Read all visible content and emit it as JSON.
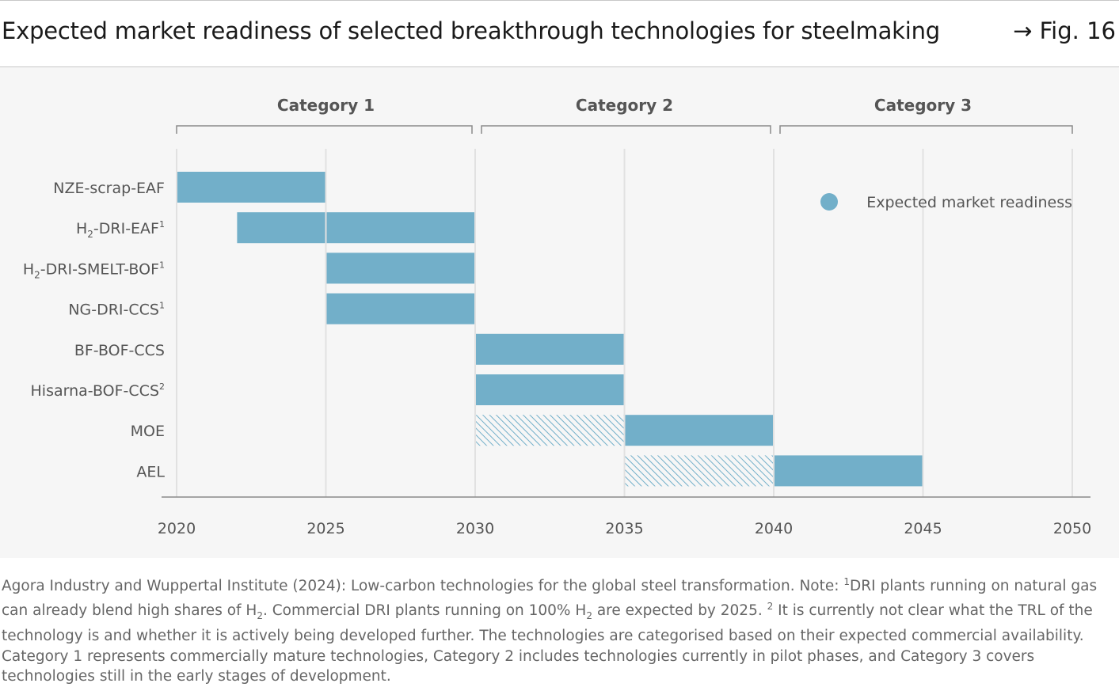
{
  "header": {
    "title": "Expected market readiness of selected breakthrough technologies for steelmaking",
    "fig_ref": "→ Fig. 16"
  },
  "colors": {
    "bar": "#72afc9",
    "hatch": "#72afc9",
    "grid": "#e1e1e1",
    "axis": "#8a8a8a",
    "text": "#555555",
    "heading": "#555555"
  },
  "chart_data": {
    "type": "gantt",
    "title": "Expected market readiness of selected breakthrough technologies for steelmaking",
    "xlim": [
      2020,
      2050
    ],
    "x_ticks": [
      "2020",
      "2025",
      "2030",
      "2035",
      "2040",
      "2045",
      "2050"
    ],
    "legend": {
      "label": "Expected market readiness",
      "position": "top-right"
    },
    "categories": [
      {
        "label": "Category 1",
        "start": 2020,
        "end": 2030
      },
      {
        "label": "Category 2",
        "start": 2030,
        "end": 2040
      },
      {
        "label": "Category 3",
        "start": 2040,
        "end": 2050
      }
    ],
    "rows": [
      {
        "base": "NZE-scrap-EAF",
        "sub": "",
        "rest": "",
        "sup": "",
        "segments": [
          {
            "start": 2020,
            "end": 2025,
            "style": "solid"
          }
        ]
      },
      {
        "base": "H",
        "sub": "2",
        "rest": "-DRI-EAF",
        "sup": "1",
        "segments": [
          {
            "start": 2022,
            "end": 2025,
            "style": "solid"
          },
          {
            "start": 2025,
            "end": 2030,
            "style": "solid"
          }
        ]
      },
      {
        "base": "H",
        "sub": "2",
        "rest": "-DRI-SMELT-BOF",
        "sup": "1",
        "segments": [
          {
            "start": 2025,
            "end": 2030,
            "style": "solid"
          }
        ]
      },
      {
        "base": "NG-DRI-CCS",
        "sub": "",
        "rest": "",
        "sup": "1",
        "segments": [
          {
            "start": 2025,
            "end": 2030,
            "style": "solid"
          }
        ]
      },
      {
        "base": "BF-BOF-CCS",
        "sub": "",
        "rest": "",
        "sup": "",
        "segments": [
          {
            "start": 2030,
            "end": 2035,
            "style": "solid"
          }
        ]
      },
      {
        "base": "Hisarna-BOF-CCS",
        "sub": "",
        "rest": "",
        "sup": "2",
        "segments": [
          {
            "start": 2030,
            "end": 2035,
            "style": "solid"
          }
        ]
      },
      {
        "base": "MOE",
        "sub": "",
        "rest": "",
        "sup": "",
        "segments": [
          {
            "start": 2030,
            "end": 2035,
            "style": "hatched"
          },
          {
            "start": 2035,
            "end": 2040,
            "style": "solid"
          }
        ]
      },
      {
        "base": "AEL",
        "sub": "",
        "rest": "",
        "sup": "",
        "segments": [
          {
            "start": 2035,
            "end": 2040,
            "style": "hatched"
          },
          {
            "start": 2040,
            "end": 2045,
            "style": "solid"
          }
        ]
      }
    ]
  },
  "footnote": {
    "text_a": "Agora Industry and Wuppertal Institute (2024): Low-carbon technologies for the global steel transformation. Note: ",
    "sup1": "1",
    "text_b": "DRI plants running on natural gas can already blend high shares of H",
    "sub1": "2",
    "text_c": ". Commercial DRI plants running on 100% H",
    "sub2": "2",
    "text_d": " are expected by 2025. ",
    "sup2": "2",
    "text_e": " It is currently not clear what the TRL of the technology is and whether it is actively being developed further. The technologies are categorised based on their expected commercial availability. Category 1 represents commercially mature technologies, Category 2 includes technologies currently in pilot phases, and Category 3 covers technologies still in the early stages of development."
  }
}
